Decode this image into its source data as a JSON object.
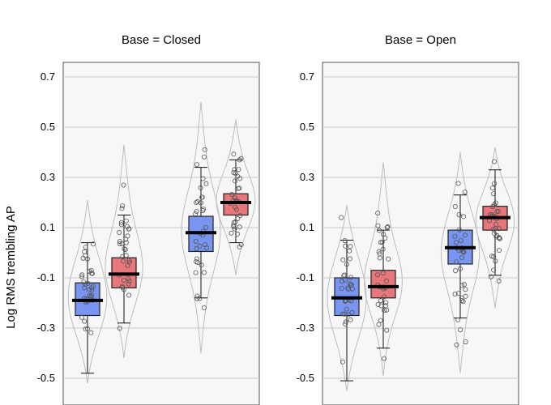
{
  "chart_data": {
    "type": "box-violin",
    "ylabel": "Log RMS trembling AP",
    "ylim": [
      -0.55,
      0.76
    ],
    "yticks": [
      -0.5,
      -0.3,
      -0.1,
      0.1,
      0.3,
      0.5,
      0.7
    ],
    "ytick_labels": [
      "-0.5",
      "-0.3",
      "-0.1",
      "0.1",
      "0.3",
      "0.5",
      "0.7"
    ],
    "grid": true,
    "colors": {
      "blue": "#7895f2",
      "red": "#e8777b"
    },
    "panels": [
      {
        "title": "Base = Closed",
        "groups": [
          {
            "color": "blue",
            "min": -0.48,
            "q1": -0.25,
            "median": -0.19,
            "q3": -0.12,
            "max": 0.04,
            "violin_min": -0.52,
            "violin_max": 0.21
          },
          {
            "color": "red",
            "min": -0.28,
            "q1": -0.14,
            "median": -0.085,
            "q3": -0.02,
            "max": 0.15,
            "violin_min": -0.42,
            "violin_max": 0.43
          },
          {
            "color": "blue",
            "min": -0.18,
            "q1": 0.005,
            "median": 0.08,
            "q3": 0.145,
            "max": 0.34,
            "violin_min": -0.4,
            "violin_max": 0.6
          },
          {
            "color": "red",
            "min": 0.04,
            "q1": 0.15,
            "median": 0.2,
            "q3": 0.235,
            "max": 0.37,
            "violin_min": -0.09,
            "violin_max": 0.53
          }
        ]
      },
      {
        "title": "Base = Open",
        "groups": [
          {
            "color": "blue",
            "min": -0.51,
            "q1": -0.25,
            "median": -0.18,
            "q3": -0.1,
            "max": 0.05,
            "violin_min": -0.55,
            "violin_max": 0.19
          },
          {
            "color": "red",
            "min": -0.38,
            "q1": -0.18,
            "median": -0.135,
            "q3": -0.07,
            "max": 0.09,
            "violin_min": -0.49,
            "violin_max": 0.36
          },
          {
            "color": "blue",
            "min": -0.26,
            "q1": -0.045,
            "median": 0.02,
            "q3": 0.09,
            "max": 0.23,
            "violin_min": -0.48,
            "violin_max": 0.4
          },
          {
            "color": "red",
            "min": -0.09,
            "q1": 0.09,
            "median": 0.14,
            "q3": 0.185,
            "max": 0.33,
            "violin_min": -0.22,
            "violin_max": 0.42
          }
        ]
      }
    ]
  }
}
